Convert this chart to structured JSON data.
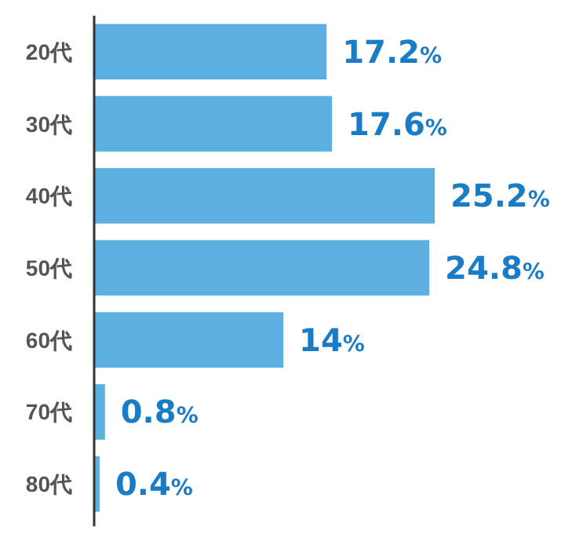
{
  "chart_data": {
    "type": "bar",
    "orientation": "horizontal",
    "categories": [
      "20代",
      "30代",
      "40代",
      "50代",
      "60代",
      "70代",
      "80代"
    ],
    "values": [
      17.2,
      17.6,
      25.2,
      24.8,
      14,
      0.8,
      0.4
    ],
    "value_labels": [
      "17.2%",
      "17.6%",
      "25.2%",
      "24.8%",
      "14%",
      "0.8%",
      "0.4%"
    ],
    "color": "#5aaee0"
  }
}
